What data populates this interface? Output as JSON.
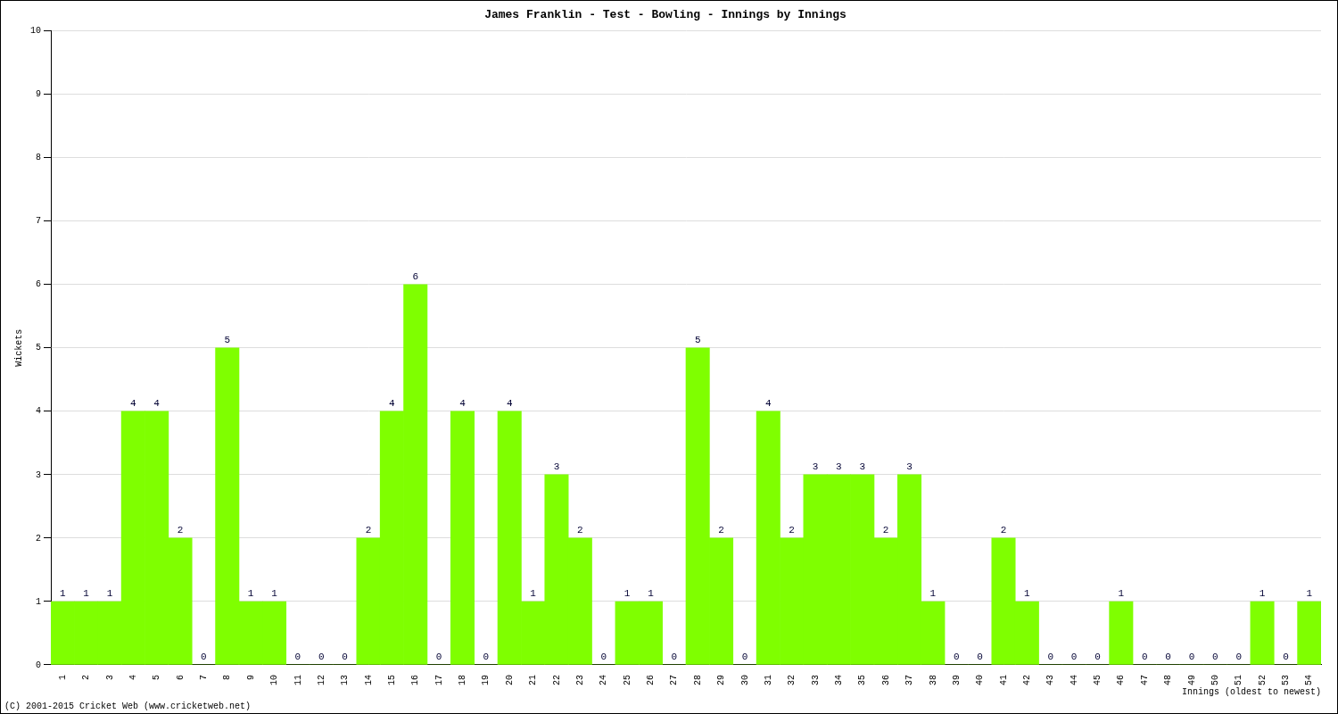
{
  "chart_data": {
    "type": "bar",
    "title": "James Franklin - Test - Bowling - Innings by Innings",
    "x_label": "Innings (oldest to newest)",
    "y_label": "Wickets",
    "annotations": [
      "(C) 2001-2015 Cricket Web (www.cricketweb.net)"
    ],
    "categories": [
      "1",
      "2",
      "3",
      "4",
      "5",
      "6",
      "7",
      "8",
      "9",
      "10",
      "11",
      "12",
      "13",
      "14",
      "15",
      "16",
      "17",
      "18",
      "19",
      "20",
      "21",
      "22",
      "23",
      "24",
      "25",
      "26",
      "27",
      "28",
      "29",
      "30",
      "31",
      "32",
      "33",
      "34",
      "35",
      "36",
      "37",
      "38",
      "39",
      "40",
      "41",
      "42",
      "43",
      "44",
      "45",
      "46",
      "47",
      "48",
      "49",
      "50",
      "51",
      "52",
      "53",
      "54"
    ],
    "values": [
      1,
      1,
      1,
      4,
      4,
      2,
      0,
      5,
      1,
      1,
      0,
      0,
      0,
      2,
      4,
      6,
      0,
      4,
      0,
      4,
      1,
      3,
      2,
      0,
      1,
      1,
      0,
      5,
      2,
      0,
      4,
      2,
      3,
      3,
      3,
      2,
      3,
      1,
      0,
      0,
      2,
      1,
      0,
      0,
      0,
      1,
      0,
      0,
      0,
      0,
      0,
      1,
      0,
      1
    ],
    "color": "#7fff00",
    "ylim": [
      0,
      10
    ],
    "yticks": [
      0,
      1,
      2,
      3,
      4,
      5,
      6,
      7,
      8,
      9,
      10
    ],
    "grid": true,
    "data_labels": true
  }
}
